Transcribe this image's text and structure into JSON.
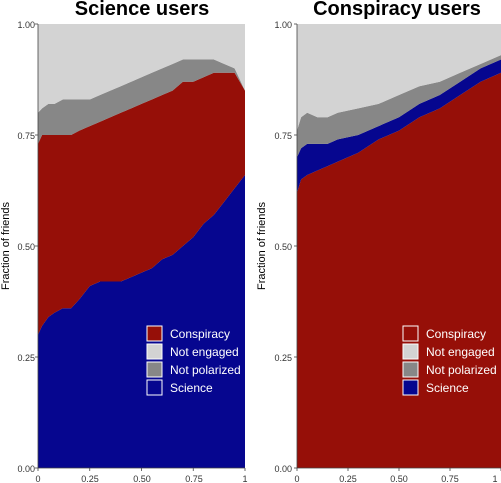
{
  "colors": {
    "Conspiracy": "#960f08",
    "Not engaged": "#d3d3d3",
    "Not polarized": "#878787",
    "Science": "#06068f"
  },
  "chart_data": [
    {
      "type": "area",
      "title": "Science users",
      "ylabel": "Fraction of friends",
      "xlim": [
        0,
        1
      ],
      "ylim": [
        0,
        1
      ],
      "xticks": [
        "0",
        "0.25",
        "0.50",
        "0.75",
        "1"
      ],
      "yticks": [
        "0.00",
        "0.25",
        "0.50",
        "0.75",
        "1.00"
      ],
      "legend": [
        "Conspiracy",
        "Not engaged",
        "Not polarized",
        "Science"
      ],
      "legend_position": "bottom-right",
      "x": [
        0,
        0.02,
        0.05,
        0.08,
        0.12,
        0.16,
        0.2,
        0.25,
        0.3,
        0.35,
        0.4,
        0.45,
        0.5,
        0.55,
        0.6,
        0.65,
        0.7,
        0.75,
        0.8,
        0.85,
        0.9,
        0.95,
        1
      ],
      "stack_order": [
        "Science",
        "Conspiracy",
        "Not polarized",
        "Not engaged"
      ],
      "series": [
        {
          "name": "Science",
          "values": [
            0.3,
            0.32,
            0.34,
            0.35,
            0.36,
            0.36,
            0.38,
            0.41,
            0.42,
            0.42,
            0.42,
            0.43,
            0.44,
            0.45,
            0.47,
            0.48,
            0.5,
            0.52,
            0.55,
            0.57,
            0.6,
            0.63,
            0.66
          ]
        },
        {
          "name": "Conspiracy",
          "values": [
            0.43,
            0.43,
            0.41,
            0.4,
            0.39,
            0.39,
            0.38,
            0.36,
            0.36,
            0.37,
            0.38,
            0.38,
            0.38,
            0.38,
            0.37,
            0.37,
            0.37,
            0.35,
            0.33,
            0.32,
            0.29,
            0.26,
            0.19
          ]
        },
        {
          "name": "Not polarized",
          "values": [
            0.07,
            0.06,
            0.07,
            0.07,
            0.08,
            0.08,
            0.07,
            0.06,
            0.06,
            0.06,
            0.06,
            0.06,
            0.06,
            0.06,
            0.06,
            0.06,
            0.05,
            0.05,
            0.04,
            0.03,
            0.02,
            0.01,
            0.0
          ]
        },
        {
          "name": "Not engaged",
          "values": [
            0.2,
            0.19,
            0.18,
            0.18,
            0.17,
            0.17,
            0.17,
            0.17,
            0.16,
            0.15,
            0.14,
            0.13,
            0.12,
            0.11,
            0.1,
            0.09,
            0.08,
            0.08,
            0.08,
            0.08,
            0.09,
            0.1,
            0.15
          ]
        }
      ]
    },
    {
      "type": "area",
      "title": "Conspiracy users",
      "ylabel": "Fraction of friends",
      "xlim": [
        0,
        1
      ],
      "ylim": [
        0,
        1
      ],
      "xticks": [
        "0",
        "0.25",
        "0.50",
        "0.75",
        "1"
      ],
      "yticks": [
        "0.00",
        "0.25",
        "0.50",
        "0.75",
        "1.00"
      ],
      "legend": [
        "Conspiracy",
        "Not engaged",
        "Not polarized",
        "Science"
      ],
      "legend_position": "bottom-right",
      "x": [
        0,
        0.02,
        0.05,
        0.1,
        0.15,
        0.2,
        0.3,
        0.4,
        0.5,
        0.6,
        0.7,
        0.8,
        0.9,
        1
      ],
      "stack_order": [
        "Conspiracy",
        "Science",
        "Not polarized",
        "Not engaged"
      ],
      "series": [
        {
          "name": "Conspiracy",
          "values": [
            0.62,
            0.65,
            0.66,
            0.67,
            0.68,
            0.69,
            0.71,
            0.74,
            0.76,
            0.79,
            0.81,
            0.84,
            0.87,
            0.89
          ]
        },
        {
          "name": "Science",
          "values": [
            0.08,
            0.07,
            0.07,
            0.06,
            0.05,
            0.05,
            0.04,
            0.03,
            0.03,
            0.03,
            0.03,
            0.03,
            0.03,
            0.03
          ]
        },
        {
          "name": "Not polarized",
          "values": [
            0.06,
            0.07,
            0.07,
            0.06,
            0.06,
            0.06,
            0.06,
            0.05,
            0.05,
            0.04,
            0.03,
            0.02,
            0.01,
            0.01
          ]
        },
        {
          "name": "Not engaged",
          "values": [
            0.24,
            0.21,
            0.2,
            0.21,
            0.21,
            0.2,
            0.19,
            0.18,
            0.16,
            0.14,
            0.13,
            0.11,
            0.09,
            0.07
          ]
        }
      ]
    }
  ]
}
